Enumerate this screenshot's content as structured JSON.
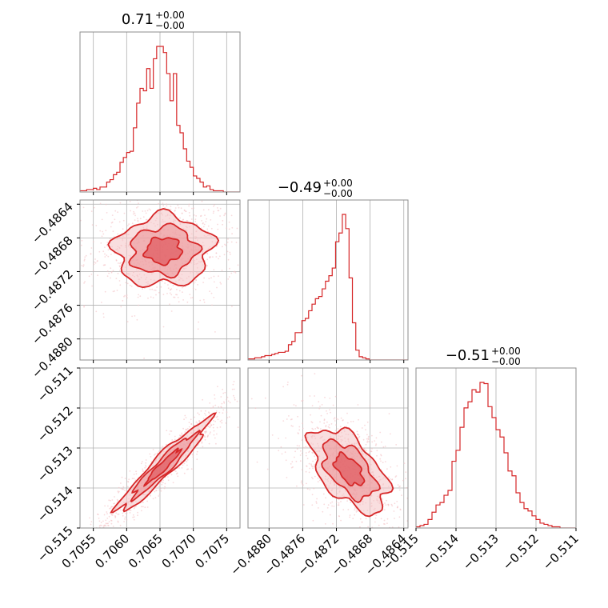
{
  "figure": {
    "type": "corner-plot"
  },
  "colors": {
    "accent": "#d62728",
    "fill_light": "#f4c2c4",
    "fill_mid": "#eb9396",
    "fill_dark": "#e0575c",
    "grid": "#b0b0b0",
    "frame": "#8c8c8c"
  },
  "chart_data": [
    {
      "type": "histogram",
      "panel": "diag-0",
      "title": {
        "main": "0.71",
        "sup": "+0.00",
        "sub": "−0.00"
      },
      "xlim": [
        0.7053,
        0.7077
      ],
      "xticks": [
        0.7055,
        0.706,
        0.7065,
        0.707,
        0.7075
      ],
      "xtick_labels": [
        "0.7055",
        "0.7060",
        "0.7065",
        "0.7070",
        "0.7075"
      ],
      "bin_edges_start": 0.7053,
      "bin_width": 5e-05,
      "values": [
        1,
        1,
        2,
        2,
        3,
        2,
        4,
        4,
        8,
        10,
        14,
        16,
        24,
        28,
        32,
        33,
        52,
        72,
        84,
        82,
        100,
        84,
        108,
        118,
        118,
        113,
        96,
        74,
        96,
        54,
        48,
        35,
        25,
        20,
        13,
        11,
        8,
        4,
        5,
        2,
        1,
        1,
        1,
        0,
        0,
        0,
        0,
        0
      ],
      "grid": true
    },
    {
      "type": "histogram",
      "panel": "diag-1",
      "title": {
        "main": "−0.49",
        "sup": "+0.00",
        "sub": "−0.00"
      },
      "xlim": [
        -0.48825,
        -0.48635
      ],
      "xticks": [
        -0.488,
        -0.4876,
        -0.4872,
        -0.4868,
        -0.4864
      ],
      "xtick_labels": [
        "−0.4880",
        "−0.4876",
        "−0.4872",
        "−0.4868",
        "−0.4864"
      ],
      "bin_edges_start": -0.48825,
      "bin_width": 4e-05,
      "values": [
        1,
        1,
        2,
        2,
        3,
        4,
        4,
        5,
        6,
        7,
        7,
        8,
        14,
        17,
        25,
        25,
        36,
        38,
        45,
        51,
        56,
        58,
        65,
        72,
        77,
        84,
        108,
        116,
        133,
        120,
        75,
        34,
        9,
        3,
        2,
        1,
        0,
        0,
        0,
        0,
        0,
        0,
        0,
        0,
        0,
        0,
        0,
        0
      ],
      "grid": true
    },
    {
      "type": "histogram",
      "panel": "diag-2",
      "title": {
        "main": "−0.51",
        "sup": "+0.00",
        "sub": "−0.00"
      },
      "xlim": [
        -0.515,
        -0.511
      ],
      "xticks": [
        -0.515,
        -0.514,
        -0.513,
        -0.512,
        -0.511
      ],
      "xtick_labels": [
        "−0.515",
        "−0.514",
        "−0.513",
        "−0.512",
        "−0.511"
      ],
      "bin_edges_start": -0.515,
      "bin_width": 0.0001,
      "values": [
        1,
        2,
        3,
        7,
        13,
        19,
        21,
        27,
        31,
        55,
        64,
        83,
        99,
        104,
        114,
        112,
        120,
        119,
        100,
        91,
        81,
        75,
        62,
        47,
        43,
        29,
        21,
        16,
        14,
        10,
        7,
        4,
        3,
        2,
        1,
        1,
        0,
        0,
        0,
        0
      ],
      "grid": true
    },
    {
      "type": "scatter-contour",
      "panel": "pair-1-0",
      "xlim": [
        0.7053,
        0.7077
      ],
      "ylim": [
        -0.48825,
        -0.48635
      ],
      "yticks": [
        -0.488,
        -0.4876,
        -0.4872,
        -0.4868,
        -0.4864
      ],
      "ytick_labels": [
        "−0.4880",
        "−0.4876",
        "−0.4872",
        "−0.4868",
        "−0.4864"
      ],
      "center": [
        0.70655,
        -0.48695
      ],
      "sigma": [
        0.00038,
        0.00022
      ],
      "correlation": 0.05,
      "grid": true
    },
    {
      "type": "scatter-contour",
      "panel": "pair-2-0",
      "xlim": [
        0.7053,
        0.7077
      ],
      "ylim": [
        -0.515,
        -0.511
      ],
      "yticks": [
        -0.515,
        -0.514,
        -0.513,
        -0.512,
        -0.511
      ],
      "ytick_labels": [
        "−0.515",
        "−0.514",
        "−0.513",
        "−0.512",
        "−0.511"
      ],
      "center": [
        0.70655,
        -0.51345
      ],
      "sigma": [
        0.00036,
        0.0006
      ],
      "correlation": 0.95,
      "grid": true
    },
    {
      "type": "scatter-contour",
      "panel": "pair-2-1",
      "xlim": [
        -0.48825,
        -0.48635
      ],
      "ylim": [
        -0.515,
        -0.511
      ],
      "center": [
        -0.48705,
        -0.51355
      ],
      "sigma": [
        0.00024,
        0.00055
      ],
      "correlation": -0.55,
      "grid": true
    }
  ]
}
